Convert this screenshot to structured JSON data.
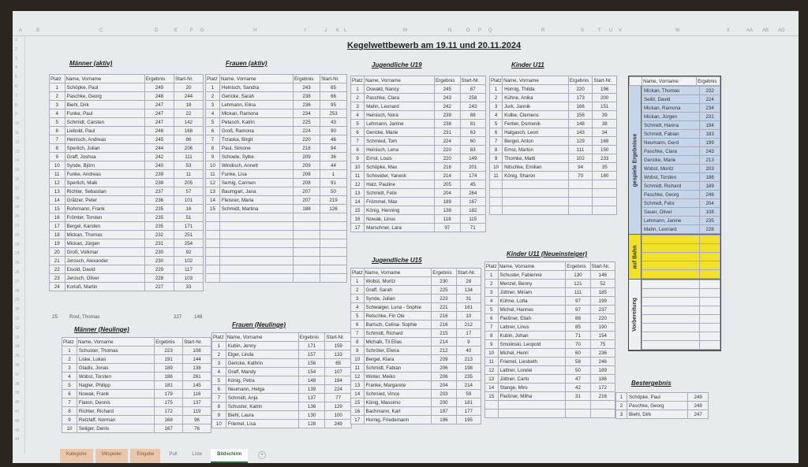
{
  "title": {
    "prefix": "Kegelwettbewerb am",
    "dates": "19.11 und 20.11.2024"
  },
  "columns": [
    "A",
    "B",
    "C",
    "D",
    "E",
    "F",
    "G",
    "H",
    "I",
    "J",
    "K",
    "L",
    "M",
    "N",
    "O",
    "P",
    "Q",
    "R",
    "S",
    "T",
    "U",
    "V",
    "W",
    "X",
    "AA",
    "AB",
    "AG"
  ],
  "headers": {
    "platz": "Platz",
    "name": "Name, Vorname",
    "ergebnis": "Ergebnis",
    "start": "Start-Nr."
  },
  "sections": {
    "maenner_aktiv": {
      "title": "Männer (aktiv)",
      "rows": [
        [
          "1",
          "Schöpke, Paul",
          "249",
          "20"
        ],
        [
          "2",
          "Paschke, Georg",
          "248",
          "244"
        ],
        [
          "3",
          "Biehl, Dirk",
          "247",
          "18"
        ],
        [
          "4",
          "Funke, Paul",
          "247",
          "22"
        ],
        [
          "5",
          "Schmidt, Carsten",
          "247",
          "142"
        ],
        [
          "6",
          "Liebold, Paul",
          "246",
          "168"
        ],
        [
          "7",
          "Heinisch, Andreas",
          "245",
          "86"
        ],
        [
          "8",
          "Sperlich, Julian",
          "244",
          "206"
        ],
        [
          "9",
          "Graff, Joshua",
          "242",
          "111"
        ],
        [
          "10",
          "Synde, Björn",
          "240",
          "53"
        ],
        [
          "11",
          "Funke, Andreas",
          "239",
          "11"
        ],
        [
          "12",
          "Sperlich, Maik",
          "238",
          "205"
        ],
        [
          "13",
          "Richter, Sebastian",
          "237",
          "57"
        ],
        [
          "14",
          "Grätzer, Peter",
          "236",
          "101"
        ],
        [
          "15",
          "Rohrmann, Frank",
          "235",
          "16"
        ],
        [
          "16",
          "Frömter, Torsten",
          "235",
          "51"
        ],
        [
          "17",
          "Bergel, Karsten",
          "235",
          "171"
        ],
        [
          "18",
          "Mickan, Thomas",
          "232",
          "251"
        ],
        [
          "19",
          "Mickan, Jürgen",
          "231",
          "254"
        ],
        [
          "20",
          "Groß, Volkmar",
          "230",
          "92"
        ],
        [
          "21",
          "Jerosch, Alexander",
          "230",
          "102"
        ],
        [
          "22",
          "Eisold, David",
          "229",
          "117"
        ],
        [
          "23",
          "Jerosch, Oliver",
          "228",
          "103"
        ],
        [
          "24",
          "Korluß, Martin",
          "227",
          "33"
        ]
      ],
      "extra": [
        "25",
        "Rost, Thomas",
        "227",
        "148"
      ]
    },
    "frauen_aktiv": {
      "title": "Frauen (aktiv)",
      "rows": [
        [
          "1",
          "Heinisch, Sandra",
          "243",
          "85"
        ],
        [
          "2",
          "Gericke, Sarah",
          "238",
          "66"
        ],
        [
          "3",
          "Lehmann, Elina",
          "236",
          "95"
        ],
        [
          "4",
          "Mickan, Ramona",
          "234",
          "253"
        ],
        [
          "5",
          "Petasch, Katrin",
          "225",
          "43"
        ],
        [
          "6",
          "Groß, Ramona",
          "224",
          "90"
        ],
        [
          "7",
          "Trzaska, Birgit",
          "220",
          "46"
        ],
        [
          "8",
          "Paul, Simone",
          "218",
          "94"
        ],
        [
          "9",
          "Schoele, Sylke",
          "209",
          "36"
        ],
        [
          "10",
          "Windisch, Annett",
          "209",
          "44"
        ],
        [
          "11",
          "Funke, Lisa",
          "208",
          "1"
        ],
        [
          "12",
          "Semig, Carmen",
          "208",
          "91"
        ],
        [
          "13",
          "Baumgart, Jana",
          "207",
          "50"
        ],
        [
          "14",
          "Fleisner, Maria",
          "207",
          "219"
        ],
        [
          "15",
          "Schmidt, Martina",
          "188",
          "126"
        ]
      ]
    },
    "jugend_u19": {
      "title": "Jugendliche U19",
      "rows": [
        [
          "1",
          "Oswald, Nancy",
          "245",
          "87"
        ],
        [
          "2",
          "Paschke, Clara",
          "243",
          "258"
        ],
        [
          "3",
          "Mahn, Leonard",
          "242",
          "243"
        ],
        [
          "4",
          "Heinisch, Nora",
          "239",
          "88"
        ],
        [
          "5",
          "Lehmann, Janine",
          "238",
          "81"
        ],
        [
          "6",
          "Gericke, Marie",
          "231",
          "63"
        ],
        [
          "7",
          "Schmied, Tom",
          "224",
          "60"
        ],
        [
          "8",
          "Heinisch, Lena",
          "220",
          "83"
        ],
        [
          "9",
          "Ernst, Louis",
          "220",
          "149"
        ],
        [
          "10",
          "Schöpke, Max",
          "216",
          "201"
        ],
        [
          "11",
          "Schneider, Yaneck",
          "214",
          "174"
        ],
        [
          "12",
          "Hatz, Pauline",
          "205",
          "45"
        ],
        [
          "13",
          "Schmidt, Felix",
          "204",
          "264"
        ],
        [
          "14",
          "Frömmel, Max",
          "189",
          "167"
        ],
        [
          "15",
          "König, Henning",
          "138",
          "182"
        ],
        [
          "16",
          "Nowak, Linus",
          "118",
          "115"
        ],
        [
          "17",
          "Marschner, Lara",
          "97",
          "71"
        ]
      ]
    },
    "kinder_u11": {
      "title": "Kinder U11",
      "rows": [
        [
          "1",
          "Hornig, Thilda",
          "220",
          "196"
        ],
        [
          "2",
          "Kühne, Anika",
          "173",
          "200"
        ],
        [
          "3",
          "Jurk, Jannik",
          "166",
          "151"
        ],
        [
          "4",
          "Kolbe, Clemens",
          "156",
          "39"
        ],
        [
          "5",
          "Ferber, Domenik",
          "148",
          "38"
        ],
        [
          "6",
          "Halgasch, Leon",
          "143",
          "34"
        ],
        [
          "7",
          "Bergel, Anton",
          "129",
          "169"
        ],
        [
          "8",
          "Ernst, Marlon",
          "111",
          "150"
        ],
        [
          "9",
          "Thomke, Matti",
          "102",
          "233"
        ],
        [
          "10",
          "Nitschke, Emilian",
          "94",
          "35"
        ],
        [
          "11",
          "König, Sharon",
          "70",
          "180"
        ]
      ]
    },
    "maenner_neulinge": {
      "title": "Männer (Neulinge)",
      "rows": [
        [
          "1",
          "Schuster, Thomas",
          "223",
          "108"
        ],
        [
          "2",
          "Liske, Lukas",
          "191",
          "144"
        ],
        [
          "3",
          "Gladis, Jonas",
          "189",
          "138"
        ],
        [
          "4",
          "Wobst, Torsten",
          "186",
          "261"
        ],
        [
          "5",
          "Nagler, Philipp",
          "181",
          "145"
        ],
        [
          "6",
          "Nowak, Frank",
          "179",
          "116"
        ],
        [
          "7",
          "Flaton, Dennis",
          "175",
          "137"
        ],
        [
          "8",
          "Richter, Richard",
          "172",
          "119"
        ],
        [
          "9",
          "Retzlaff, Norman",
          "168",
          "96"
        ],
        [
          "10",
          "Seliger, Denis",
          "167",
          "76"
        ]
      ]
    },
    "frauen_neulinge": {
      "title": "Frauen (Neulinge)",
      "rows": [
        [
          "1",
          "Kubin, Jenny",
          "171",
          "159"
        ],
        [
          "2",
          "Elger, Linda",
          "157",
          "133"
        ],
        [
          "3",
          "Gericke, Kathrin",
          "156",
          "65"
        ],
        [
          "4",
          "Graff, Mandy",
          "154",
          "107"
        ],
        [
          "5",
          "König, Petra",
          "148",
          "184"
        ],
        [
          "6",
          "Neumann, Helga",
          "139",
          "224"
        ],
        [
          "7",
          "Schmidt, Anja",
          "137",
          "77"
        ],
        [
          "8",
          "Schuster, Katrin",
          "136",
          "129"
        ],
        [
          "9",
          "Biehl, Laura",
          "130",
          "100"
        ],
        [
          "10",
          "Friemel, Lisa",
          "128",
          "249"
        ]
      ]
    },
    "jugend_u15": {
      "title": "Jugendliche U15",
      "rows": [
        [
          "1",
          "Wobst, Moritz",
          "230",
          "28"
        ],
        [
          "2",
          "Graff, Sarah",
          "225",
          "134"
        ],
        [
          "3",
          "Synde, Julian",
          "223",
          "31"
        ],
        [
          "4",
          "Schwaiger, Luna - Sophie",
          "221",
          "161"
        ],
        [
          "5",
          "Retschke, Fin Ole",
          "216",
          "10"
        ],
        [
          "6",
          "Bartsch, Celina- Sophie",
          "216",
          "212"
        ],
        [
          "7",
          "Schmidt, Richard",
          "215",
          "17"
        ],
        [
          "8",
          "Michalk, Til Elias",
          "214",
          "9"
        ],
        [
          "9",
          "Schröter, Elena",
          "212",
          "40"
        ],
        [
          "10",
          "Bergel, Klara",
          "209",
          "213"
        ],
        [
          "11",
          "Schmidt, Fabian",
          "206",
          "198"
        ],
        [
          "12",
          "Winter, Meiko",
          "206",
          "235"
        ],
        [
          "13",
          "Franke, Margarete",
          "204",
          "214"
        ],
        [
          "14",
          "Schmied, Vince",
          "203",
          "59"
        ],
        [
          "15",
          "König, Massimo",
          "200",
          "181"
        ],
        [
          "16",
          "Bachmann, Karl",
          "197",
          "177"
        ],
        [
          "17",
          "Hornig, Friedemann",
          "196",
          "195"
        ]
      ]
    },
    "kinder_u11_neu": {
      "title": "Kinder U11 (Neueinsteiger)",
      "rows": [
        [
          "1",
          "Schuster, Fabienne",
          "130",
          "146"
        ],
        [
          "2",
          "Menzel, Benny",
          "121",
          "52"
        ],
        [
          "3",
          "Jüttner, Miriam",
          "111",
          "185"
        ],
        [
          "4",
          "Kühne, Lotta",
          "97",
          "199"
        ],
        [
          "5",
          "Michel, Hannes",
          "97",
          "237"
        ],
        [
          "6",
          "Fleißner, Eliah",
          "88",
          "220"
        ],
        [
          "7",
          "Lattner, Linus",
          "85",
          "190"
        ],
        [
          "8",
          "Kubin, Johan",
          "71",
          "154"
        ],
        [
          "9",
          "Smolinski, Leopold",
          "70",
          "75"
        ],
        [
          "10",
          "Michel, Henri",
          "60",
          "236"
        ],
        [
          "11",
          "Friemel, Liesbeth",
          "58",
          "246"
        ],
        [
          "12",
          "Lattner, Lorelei",
          "50",
          "189"
        ],
        [
          "13",
          "Jüttner, Carlo",
          "47",
          "186"
        ],
        [
          "14",
          "Stange, Miro",
          "42",
          "172"
        ],
        [
          "15",
          "Fleißner, Milha",
          "31",
          "216"
        ]
      ]
    }
  },
  "side": {
    "name_header": "Name, Vorname",
    "ergebnis_header": "Ergebnis",
    "played_label": "gespiele Ergebnisse",
    "lane_label": "auf Bahn",
    "prep_label": "Vorbereitung",
    "played": [
      [
        "Mickan, Thomas",
        "232"
      ],
      [
        "Seibt, David",
        "224"
      ],
      [
        "Mickan, Ramona",
        "234"
      ],
      [
        "Mickan, Jürgen",
        "231"
      ],
      [
        "Schmidt, Hanna",
        "194"
      ],
      [
        "Schmidt, Fabian",
        "183"
      ],
      [
        "Neumann, Gerd",
        "199"
      ],
      [
        "Paschke, Clara",
        "243"
      ],
      [
        "Gericke, Marie",
        "213"
      ],
      [
        "Wobst, Moritz",
        "203"
      ],
      [
        "Wobst, Torsten",
        "186"
      ],
      [
        "Schmidt, Richard",
        "189"
      ],
      [
        "Paschke, Georg",
        "246"
      ],
      [
        "Schmidt, Felix",
        "204"
      ],
      [
        "Sauer, Oliver",
        "108"
      ],
      [
        "Lehmann, Janine",
        "235"
      ],
      [
        "Mahn, Leonard",
        "228"
      ]
    ],
    "played_color": "#c5d6ea",
    "lane_color": "#f2e12a"
  },
  "best": {
    "title": "Bestergebnis",
    "rows": [
      [
        "1",
        "Schöpke, Paul",
        "249"
      ],
      [
        "2",
        "Paschke, Georg",
        "248"
      ],
      [
        "3",
        "Biehl, Dirk",
        "247"
      ]
    ]
  },
  "tabs": [
    {
      "label": "Kategorie",
      "style": "orange"
    },
    {
      "label": "Mitspieler",
      "style": "orange"
    },
    {
      "label": "Eingabe",
      "style": "orange"
    },
    {
      "label": "Pull",
      "style": ""
    },
    {
      "label": "Liste",
      "style": ""
    },
    {
      "label": "Bildschirm",
      "style": "active"
    }
  ],
  "add_sheet": "+"
}
